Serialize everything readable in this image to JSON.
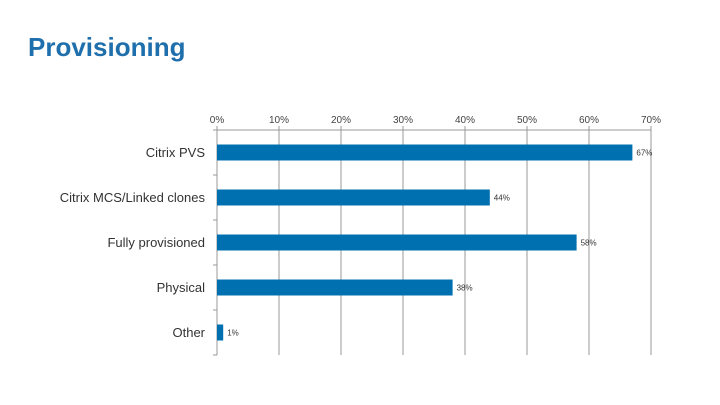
{
  "slide": {
    "title": "Provisioning"
  },
  "chart_data": {
    "type": "bar",
    "orientation": "horizontal",
    "categories": [
      "Citrix PVS",
      "Citrix MCS/Linked clones",
      "Fully provisioned",
      "Physical",
      "Other"
    ],
    "values": [
      67,
      44,
      58,
      38,
      1
    ],
    "data_labels": [
      "67%",
      "44%",
      "58%",
      "38%",
      "1%"
    ],
    "xlim": [
      0,
      70
    ],
    "xticks": [
      0,
      10,
      20,
      30,
      40,
      50,
      60,
      70
    ],
    "xtick_labels": [
      "0%",
      "10%",
      "20%",
      "30%",
      "40%",
      "50%",
      "60%",
      "70%"
    ],
    "x_axis_position": "top",
    "grid": true,
    "bar_color": "#0070b0",
    "grid_color": "#9a9a9a"
  }
}
